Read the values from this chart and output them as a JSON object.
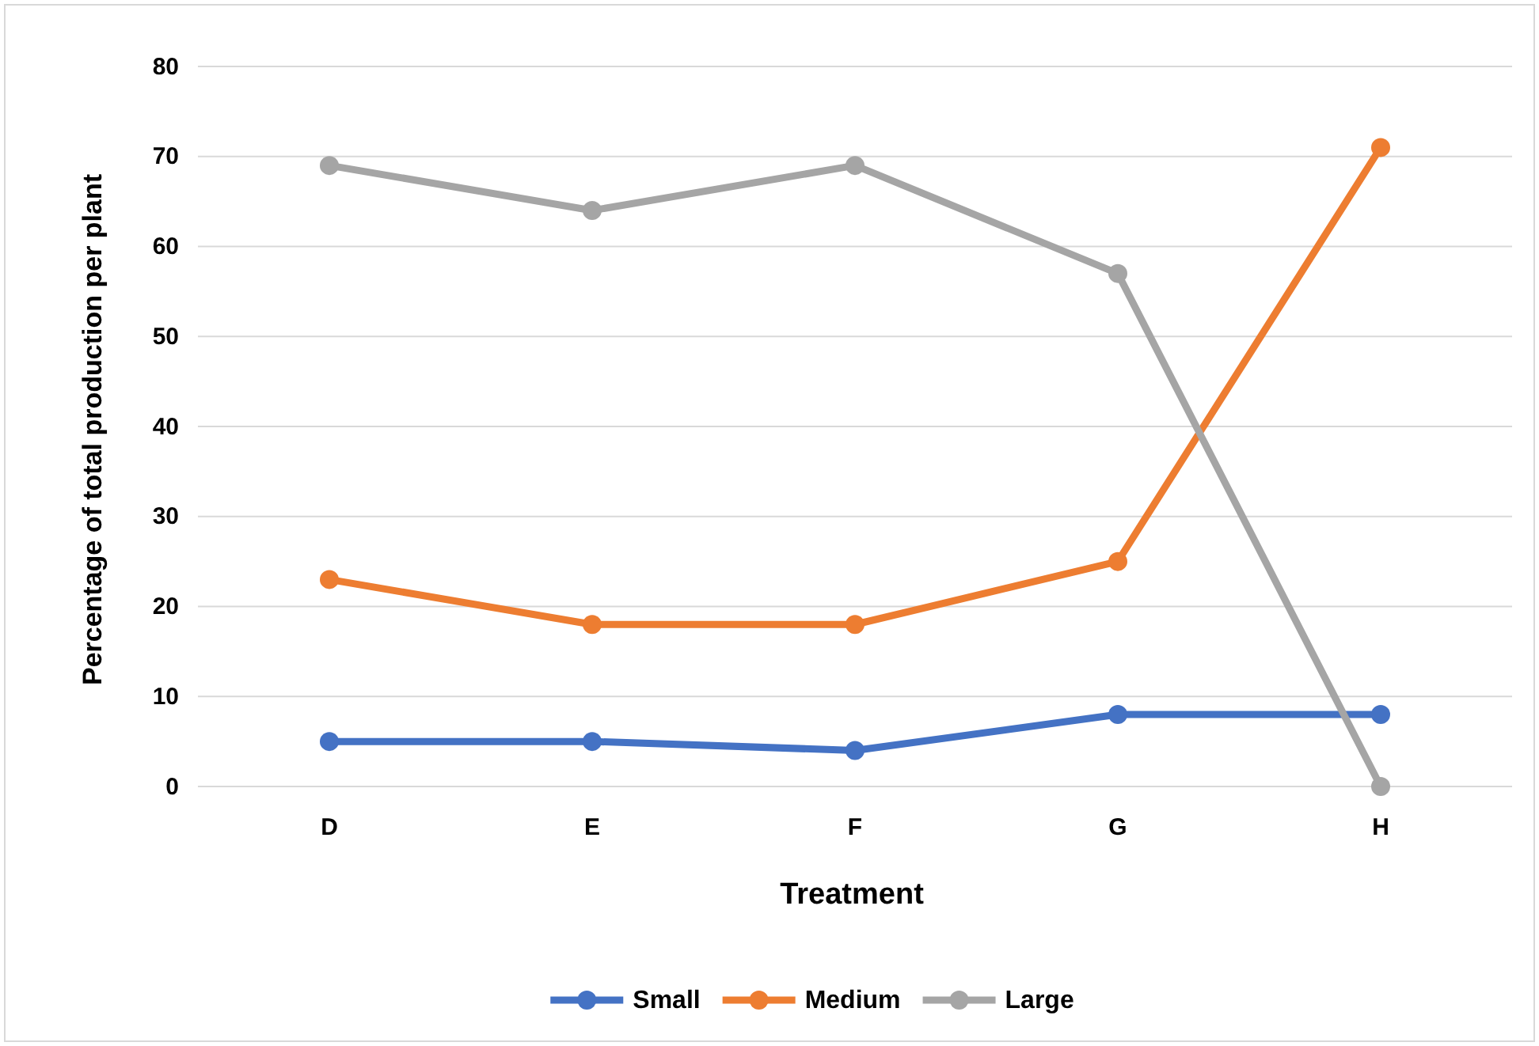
{
  "chart_data": {
    "type": "line",
    "xlabel": "Treatment",
    "ylabel": "Percentage of total production per plant",
    "categories": [
      "D",
      "E",
      "F",
      "G",
      "H"
    ],
    "series": [
      {
        "name": "Small",
        "color": "#4472c4",
        "values": [
          5,
          5,
          4,
          8,
          8
        ]
      },
      {
        "name": "Medium",
        "color": "#ed7d31",
        "values": [
          23,
          18,
          18,
          25,
          71
        ]
      },
      {
        "name": "Large",
        "color": "#a5a5a5",
        "values": [
          69,
          64,
          69,
          57,
          0
        ]
      }
    ],
    "ylim": [
      0,
      80
    ],
    "yticks": [
      0,
      10,
      20,
      30,
      40,
      50,
      60,
      70,
      80
    ],
    "grid": "y",
    "legend": "bottom",
    "marker": "circle",
    "line_style": "solid"
  }
}
